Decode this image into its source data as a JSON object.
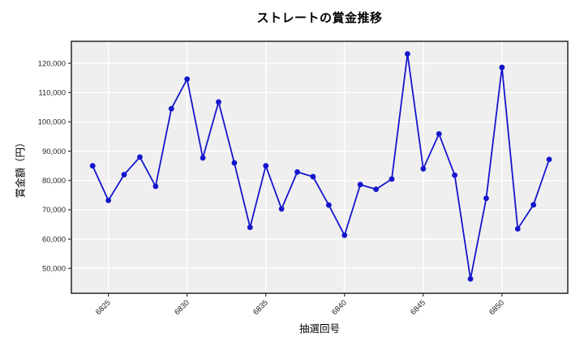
{
  "chart_data": {
    "type": "line",
    "title": "ストレートの賞金推移",
    "xlabel": "抽選回号",
    "ylabel": "賞金額（円）",
    "x": [
      6824,
      6825,
      6826,
      6827,
      6828,
      6829,
      6830,
      6831,
      6832,
      6833,
      6834,
      6835,
      6836,
      6837,
      6838,
      6839,
      6840,
      6841,
      6842,
      6843,
      6844,
      6845,
      6846,
      6847,
      6848,
      6849,
      6850,
      6851,
      6852,
      6853
    ],
    "values": [
      85000,
      73200,
      82000,
      88000,
      78000,
      104500,
      114600,
      87700,
      106800,
      86000,
      64000,
      85000,
      70300,
      82900,
      81300,
      71600,
      61300,
      78600,
      77000,
      80500,
      123200,
      84000,
      95900,
      81800,
      46400,
      73900,
      118600,
      63500,
      71700,
      87200
    ],
    "xticks": [
      6825,
      6830,
      6835,
      6840,
      6845,
      6850
    ],
    "yticks": [
      50000,
      60000,
      70000,
      80000,
      90000,
      100000,
      110000,
      120000
    ],
    "xlim": [
      6822.65,
      6854.18
    ],
    "ylim": [
      41500,
      127500
    ],
    "grid": true,
    "legend": false,
    "marker": "circle",
    "style": {
      "line_color": "#1515cd",
      "marker_color": "#1515cd",
      "plot_bg": "#efefef",
      "grid_color": "#ffffff",
      "border_color": "#333333",
      "tick_text_color": "#262626"
    }
  }
}
